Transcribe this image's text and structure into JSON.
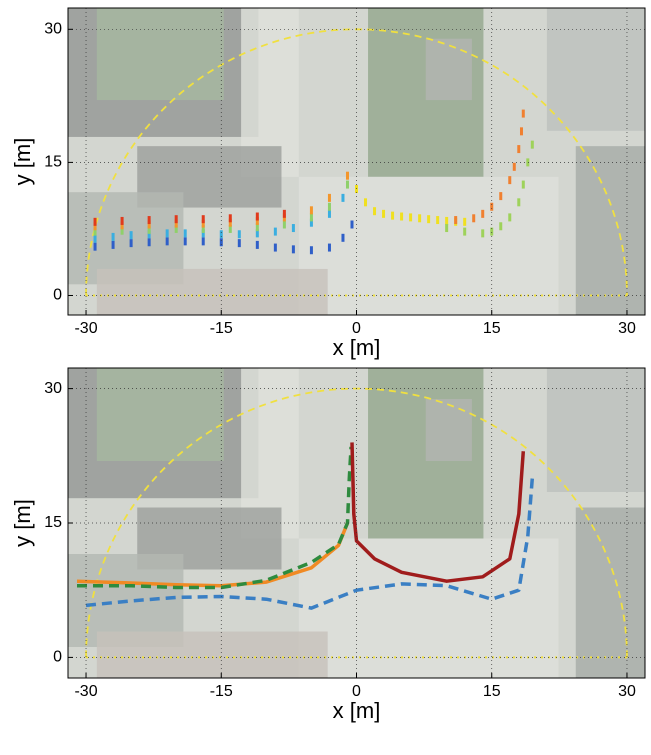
{
  "chart_data": [
    {
      "type": "scatter",
      "xlabel": "x [m]",
      "ylabel": "y [m]",
      "xlim": [
        -32,
        32
      ],
      "ylim": [
        -2.2,
        32.4
      ],
      "xticks": [
        -30,
        -15,
        0,
        15,
        30
      ],
      "yticks": [
        0,
        15,
        30
      ],
      "grid": true,
      "series": [
        {
          "color": "#2f5fc8",
          "x": [
            -29,
            -27,
            -25,
            -23,
            -21,
            -19,
            -17,
            -15,
            -13,
            -11,
            -9,
            -7,
            -5,
            -3,
            -1.5,
            -0.5
          ],
          "values": [
            5.5,
            5.7,
            5.9,
            6,
            6.1,
            6.1,
            6.1,
            6,
            5.9,
            5.7,
            5.4,
            5.2,
            5.1,
            5.4,
            6.5,
            8
          ]
        },
        {
          "color": "#3aaee0",
          "x": [
            -29,
            -27,
            -25,
            -23,
            -21,
            -19,
            -17,
            -15,
            -13,
            -11,
            -9,
            -7,
            -5,
            -3,
            -1.5
          ],
          "values": [
            6.4,
            6.6,
            6.8,
            6.9,
            7,
            7,
            7,
            6.9,
            6.9,
            7,
            7.2,
            7.6,
            8.2,
            9.2,
            11
          ]
        },
        {
          "color": "#8fd06a",
          "x": [
            -29,
            -26,
            -23,
            -20,
            -17,
            -14,
            -11,
            -8,
            -5,
            -3,
            -1
          ],
          "values": [
            7.2,
            7.3,
            7.4,
            7.5,
            7.5,
            7.5,
            7.7,
            8,
            8.8,
            10,
            12.5
          ]
        },
        {
          "color": "#f3962c",
          "x": [
            -29,
            -26,
            -23,
            -20,
            -17,
            -14,
            -11,
            -8,
            -5,
            -3,
            -1
          ],
          "values": [
            7.8,
            7.9,
            8,
            8.1,
            8.1,
            8.2,
            8.4,
            8.8,
            9.6,
            11,
            13.5
          ]
        },
        {
          "color": "#e03a1c",
          "x": [
            -29,
            -26,
            -23,
            -20,
            -17,
            -14,
            -11,
            -8
          ],
          "values": [
            8.3,
            8.4,
            8.5,
            8.6,
            8.6,
            8.7,
            8.9,
            9.2
          ]
        },
        {
          "color": "#f0e020",
          "x": [
            0,
            1,
            2,
            3,
            4,
            5,
            6,
            7,
            8,
            9,
            10,
            11,
            12
          ],
          "values": [
            12,
            10.5,
            9.5,
            9.2,
            9,
            8.9,
            8.8,
            8.7,
            8.6,
            8.5,
            8.4,
            8.3,
            8.3
          ]
        },
        {
          "color": "#9ed25a",
          "x": [
            10,
            12,
            14,
            15,
            16,
            17,
            18,
            18.5,
            19,
            19.5
          ],
          "values": [
            7.6,
            7.2,
            7,
            7.2,
            7.8,
            8.8,
            10.5,
            12.5,
            15,
            17
          ]
        },
        {
          "color": "#f08030",
          "x": [
            11,
            13,
            14,
            15,
            16,
            17,
            17.5,
            18,
            18.3,
            18.5
          ],
          "values": [
            8.5,
            8.7,
            9.2,
            10,
            11.2,
            13,
            14.5,
            16.5,
            18.5,
            20.5
          ]
        }
      ]
    },
    {
      "type": "line",
      "xlabel": "x [m]",
      "ylabel": "y [m]",
      "xlim": [
        -32,
        32
      ],
      "ylim": [
        -2.3,
        32.3
      ],
      "xticks": [
        -30,
        -15,
        0,
        15,
        30
      ],
      "yticks": [
        0,
        15,
        30
      ],
      "grid": true,
      "series": [
        {
          "color": "#f08a24",
          "dashed": false,
          "x": [
            -31,
            -25,
            -20,
            -15,
            -10,
            -5,
            -2,
            -1
          ],
          "values": [
            8.5,
            8.3,
            8.1,
            8,
            8.4,
            10,
            12.5,
            15
          ]
        },
        {
          "color": "#2e8b3e",
          "dashed": true,
          "x": [
            -31,
            -25,
            -20,
            -15,
            -10,
            -5,
            -2,
            -1,
            -0.8,
            -0.6
          ],
          "values": [
            8,
            8,
            7.8,
            7.8,
            8.6,
            10.6,
            12.6,
            15,
            20,
            23.5
          ]
        },
        {
          "color": "#3a7fc4",
          "dashed": true,
          "x": [
            -30,
            -25,
            -20,
            -15,
            -10,
            -5,
            0,
            5,
            10,
            15,
            18,
            19,
            19.5
          ],
          "values": [
            5.8,
            6.3,
            6.7,
            6.8,
            6.5,
            5.5,
            7.5,
            8.2,
            8,
            6.5,
            7.5,
            13.5,
            20
          ]
        },
        {
          "color": "#a01c1c",
          "dashed": false,
          "x": [
            -0.5,
            -0.3,
            0,
            2,
            5,
            10,
            14,
            17,
            18,
            18.5
          ],
          "values": [
            24,
            16,
            13,
            11,
            9.5,
            8.5,
            9,
            11,
            16,
            23
          ]
        }
      ]
    }
  ]
}
